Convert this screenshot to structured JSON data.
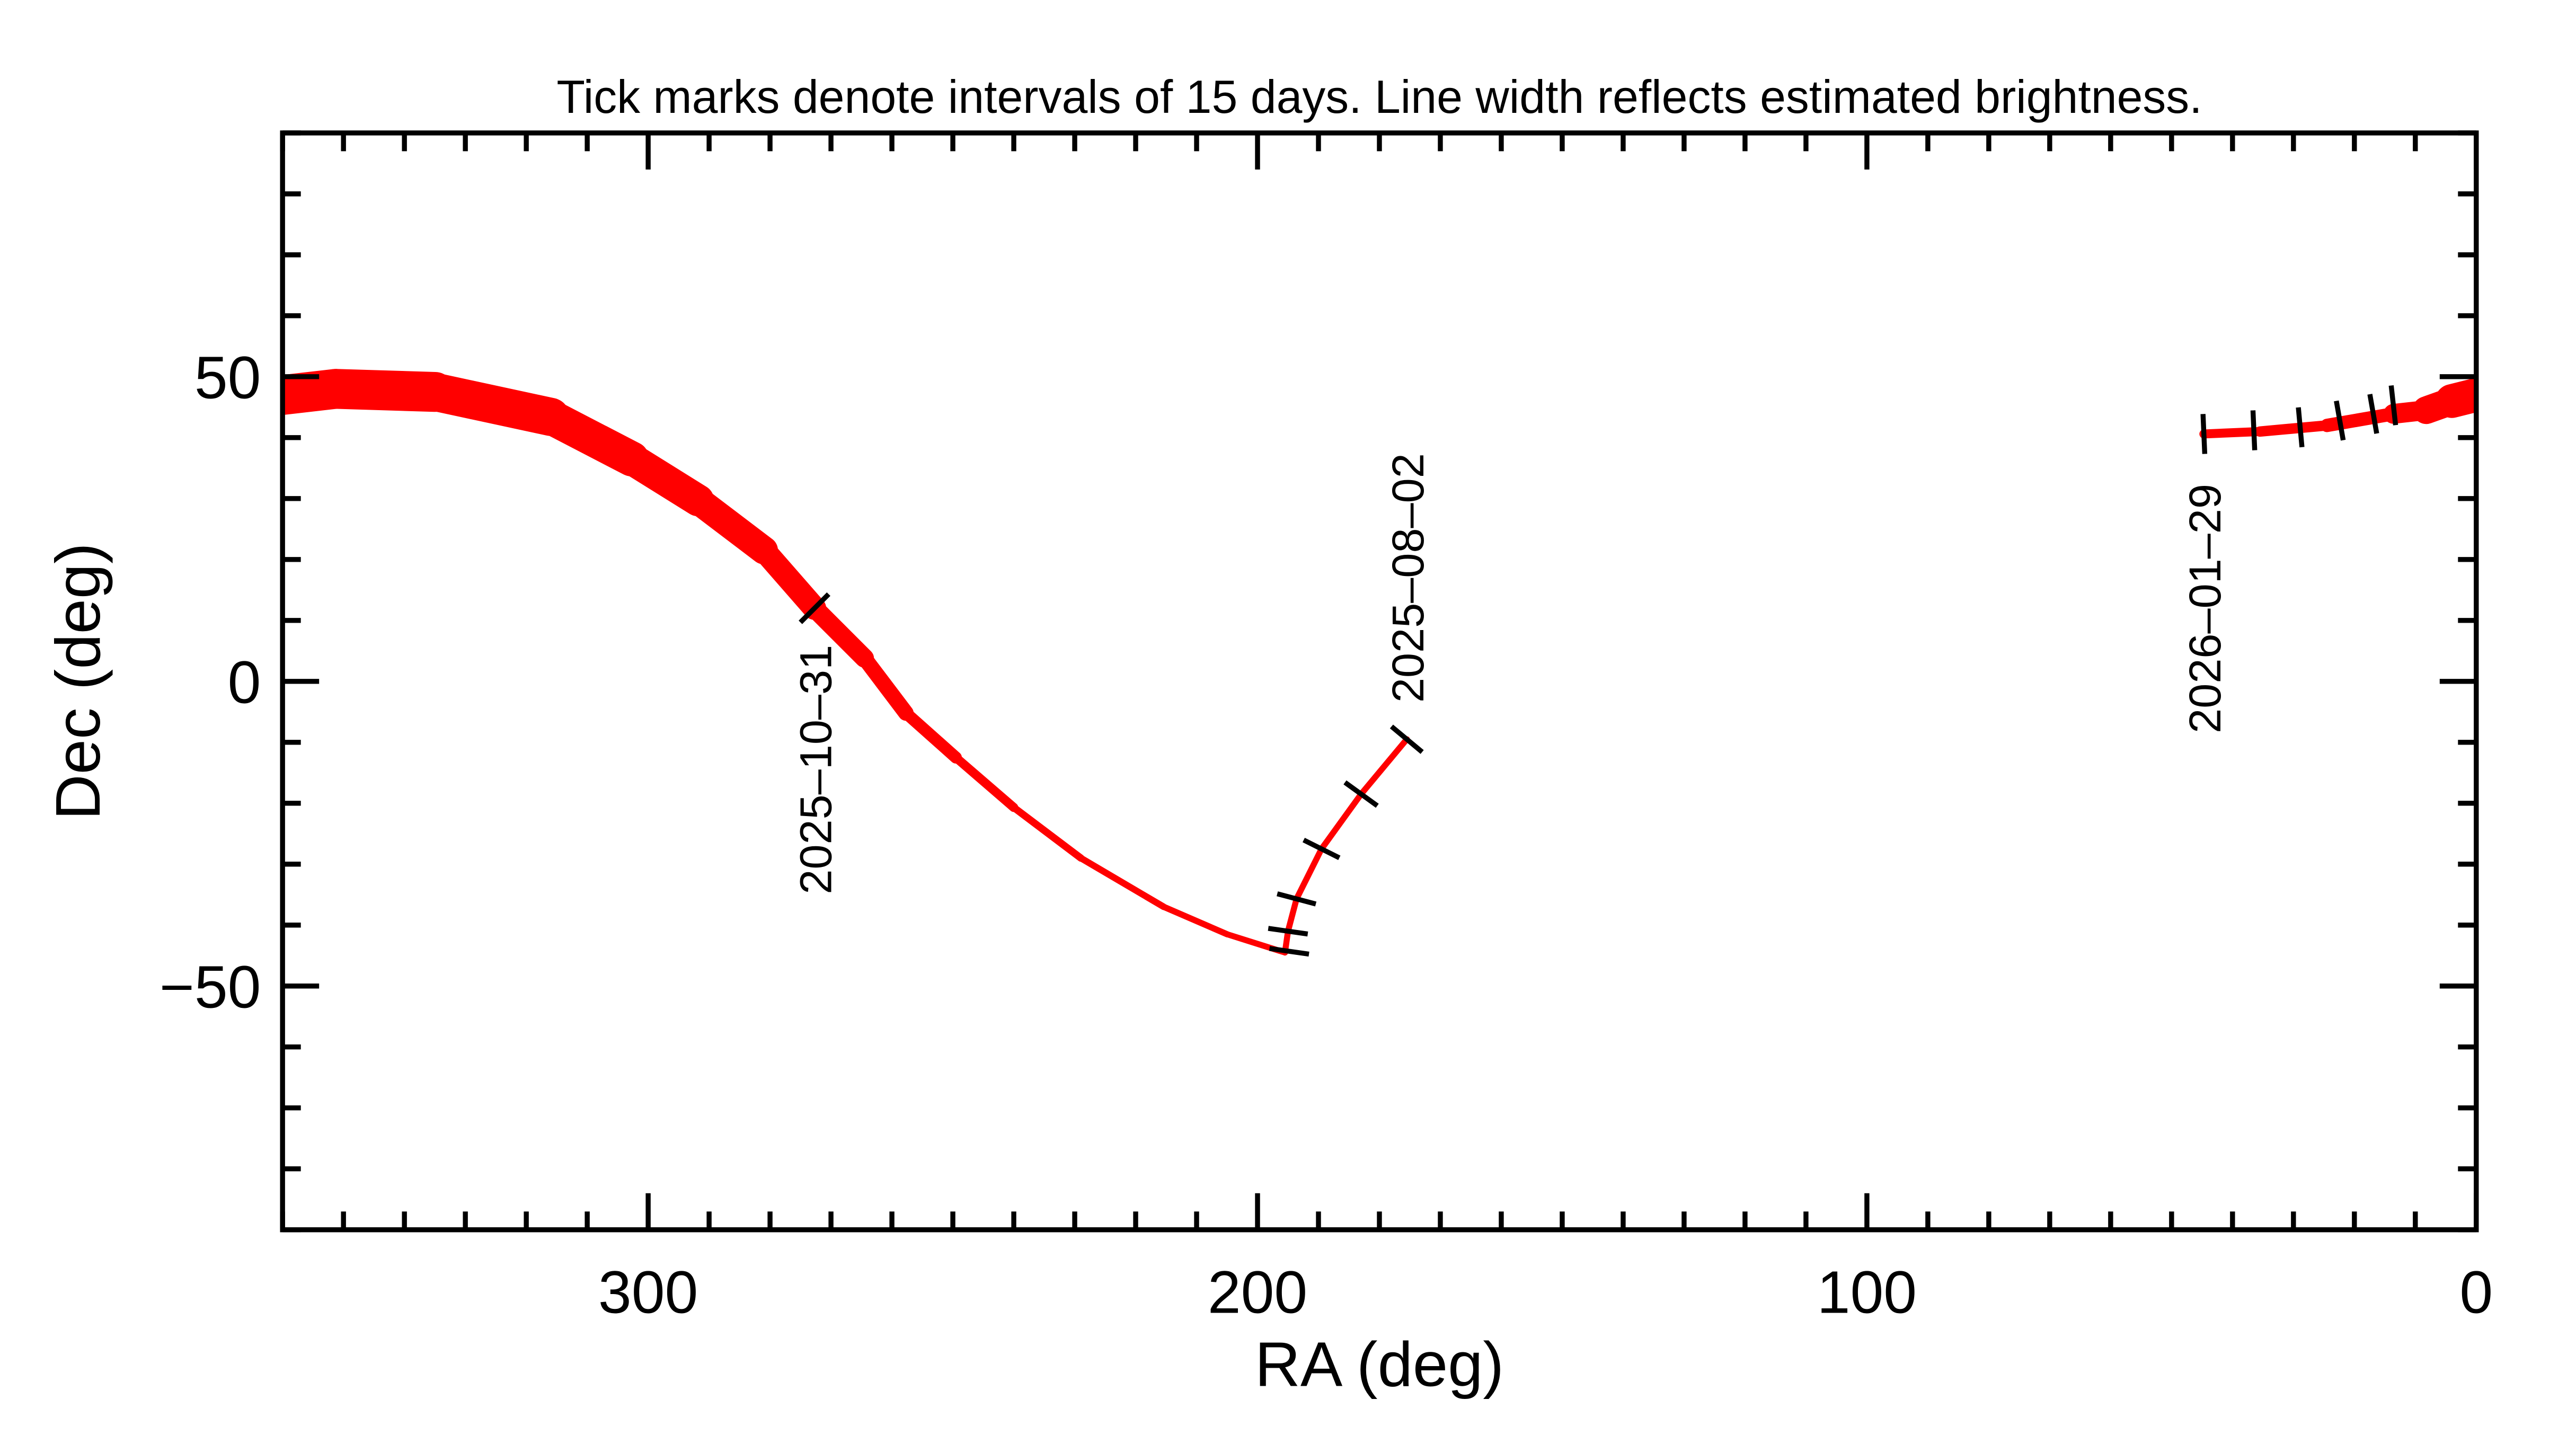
{
  "chart_data": {
    "type": "line",
    "title": "Tick marks denote intervals of 15 days.  Line width reflects estimated brightness.",
    "xlabel": "RA (deg)",
    "ylabel": "Dec (deg)",
    "xlim": [
      360,
      0
    ],
    "ylim": [
      -90,
      90
    ],
    "x_reversed": true,
    "grid": false,
    "x_ticks": [
      300,
      200,
      100,
      0
    ],
    "x_tick_labels": [
      "300",
      "200",
      "100",
      "0"
    ],
    "y_ticks": [
      50,
      0,
      -50
    ],
    "y_tick_labels": [
      "50",
      "0",
      "−50"
    ],
    "line_color": "#ff0000",
    "tick_color": "#000000",
    "track": [
      {
        "ra": 175.5,
        "dec": -9.5,
        "brightness": 0.03
      },
      {
        "ra": 183,
        "dec": -18.5,
        "brightness": 0.03
      },
      {
        "ra": 189.5,
        "dec": -27.5,
        "brightness": 0.03
      },
      {
        "ra": 193.6,
        "dec": -35.7,
        "brightness": 0.03
      },
      {
        "ra": 195,
        "dec": -41,
        "brightness": 0.03
      },
      {
        "ra": 195.5,
        "dec": -44.5,
        "brightness": 0.03
      },
      {
        "ra": 205,
        "dec": -41.5,
        "brightness": 0.03
      },
      {
        "ra": 215.4,
        "dec": -37,
        "brightness": 0.04
      },
      {
        "ra": 229,
        "dec": -29,
        "brightness": 0.05
      },
      {
        "ra": 240,
        "dec": -20.7,
        "brightness": 0.08
      },
      {
        "ra": 249.5,
        "dec": -12.5,
        "brightness": 0.15
      },
      {
        "ra": 257.7,
        "dec": -5.2,
        "brightness": 0.25
      },
      {
        "ra": 264.5,
        "dec": 3.8,
        "brightness": 0.35
      },
      {
        "ra": 272.7,
        "dec": 12,
        "brightness": 0.45
      },
      {
        "ra": 281,
        "dec": 21.5,
        "brightness": 0.6
      },
      {
        "ra": 291.8,
        "dec": 29.7,
        "brightness": 0.72
      },
      {
        "ra": 302.7,
        "dec": 36.5,
        "brightness": 0.82
      },
      {
        "ra": 316,
        "dec": 43.4,
        "brightness": 0.9
      },
      {
        "ra": 335,
        "dec": 47.5,
        "brightness": 1.0
      },
      {
        "ra": 351.3,
        "dec": 48,
        "brightness": 1.0
      },
      {
        "ra": 360,
        "dec": 47,
        "brightness": 1.0
      },
      {
        "ra": 0,
        "dec": 47,
        "brightness": 0.9,
        "wrap": true
      },
      {
        "ra": 4,
        "dec": 46,
        "brightness": 0.75
      },
      {
        "ra": 8.2,
        "dec": 44.5,
        "brightness": 0.55
      },
      {
        "ra": 13.6,
        "dec": 43.9,
        "brightness": 0.3
      },
      {
        "ra": 24.5,
        "dec": 42,
        "brightness": 0.18
      },
      {
        "ra": 35.5,
        "dec": 41,
        "brightness": 0.13
      },
      {
        "ra": 44.7,
        "dec": 40.6,
        "brightness": 0.1
      }
    ],
    "date_ticks": [
      {
        "ra": 175.5,
        "dec": -9.5
      },
      {
        "ra": 183,
        "dec": -18.5
      },
      {
        "ra": 189.5,
        "dec": -27.5
      },
      {
        "ra": 193.6,
        "dec": -35.7
      },
      {
        "ra": 195,
        "dec": -41
      },
      {
        "ra": 194.8,
        "dec": -44.3
      },
      {
        "ra": 272.7,
        "dec": 12
      },
      {
        "ra": 44.7,
        "dec": 40.6
      },
      {
        "ra": 36.5,
        "dec": 41.2
      },
      {
        "ra": 28.9,
        "dec": 41.7
      },
      {
        "ra": 22.4,
        "dec": 42.8
      },
      {
        "ra": 16.9,
        "dec": 43.9
      },
      {
        "ra": 13.6,
        "dec": 45.3
      }
    ],
    "date_labels": [
      {
        "text": "2025–08–02",
        "ra": 175.5,
        "dec": -9.5
      },
      {
        "text": "2025–10–31",
        "ra": 272.7,
        "dec": 12
      },
      {
        "text": "2026–01–29",
        "ra": 44.7,
        "dec": 40.6
      }
    ]
  }
}
